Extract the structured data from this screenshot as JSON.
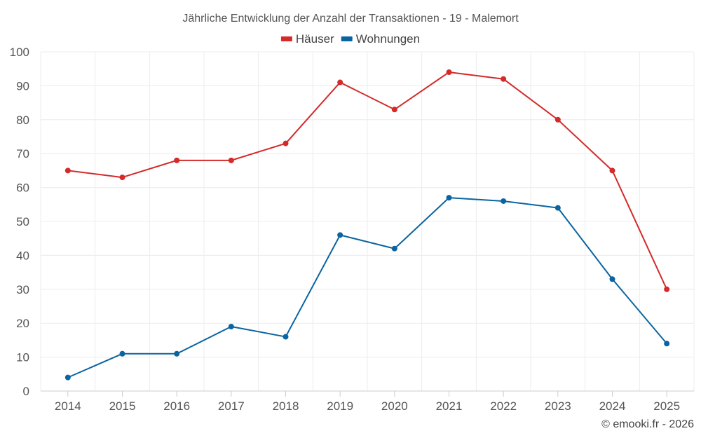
{
  "chart_data": {
    "type": "line",
    "title": "Jährliche Entwicklung der Anzahl der Transaktionen - 19 - Malemort",
    "categories": [
      "2014",
      "2015",
      "2016",
      "2017",
      "2018",
      "2019",
      "2020",
      "2021",
      "2022",
      "2023",
      "2024",
      "2025"
    ],
    "series": [
      {
        "name": "Häuser",
        "color": "#d42a2a",
        "values": [
          65,
          63,
          68,
          68,
          73,
          91,
          83,
          94,
          92,
          80,
          65,
          30
        ]
      },
      {
        "name": "Wohnungen",
        "color": "#0a64a0",
        "values": [
          4,
          11,
          11,
          19,
          16,
          46,
          42,
          57,
          56,
          54,
          33,
          14
        ]
      }
    ],
    "ylim": [
      0,
      100
    ],
    "yticks": [
      0,
      10,
      20,
      30,
      40,
      50,
      60,
      70,
      80,
      90,
      100
    ],
    "grid": true,
    "legend": "top-center",
    "xlabel": "",
    "ylabel": ""
  },
  "credit": "© emooki.fr - 2026"
}
